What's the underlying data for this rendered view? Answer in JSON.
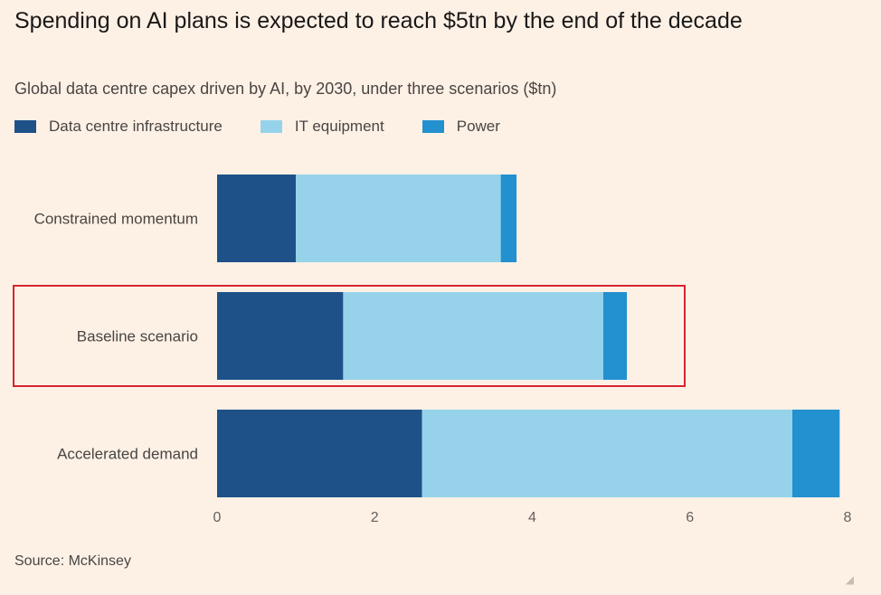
{
  "chart_data": {
    "type": "bar",
    "orientation": "horizontal",
    "stacked": true,
    "title": "Spending on AI plans is expected to reach $5tn by the end of the decade",
    "subtitle": "Global data centre capex driven by AI, by 2030, under three scenarios ($tn)",
    "categories": [
      "Constrained momentum",
      "Baseline scenario",
      "Accelerated demand"
    ],
    "series": [
      {
        "name": "Data centre infrastructure",
        "color": "#1f5189",
        "values": [
          1.0,
          1.6,
          2.6
        ]
      },
      {
        "name": "IT equipment",
        "color": "#96d3ea",
        "values": [
          2.6,
          3.3,
          4.7
        ]
      },
      {
        "name": "Power",
        "color": "#2390cf",
        "values": [
          0.2,
          0.3,
          0.6
        ]
      }
    ],
    "x_ticks": [
      0,
      2,
      4,
      6,
      8
    ],
    "xlim": [
      0,
      8
    ],
    "grid": false,
    "legend_position": "top-left",
    "highlight_category": "Baseline scenario",
    "highlight_color": "#d7242f",
    "source": "Source: McKinsey"
  }
}
